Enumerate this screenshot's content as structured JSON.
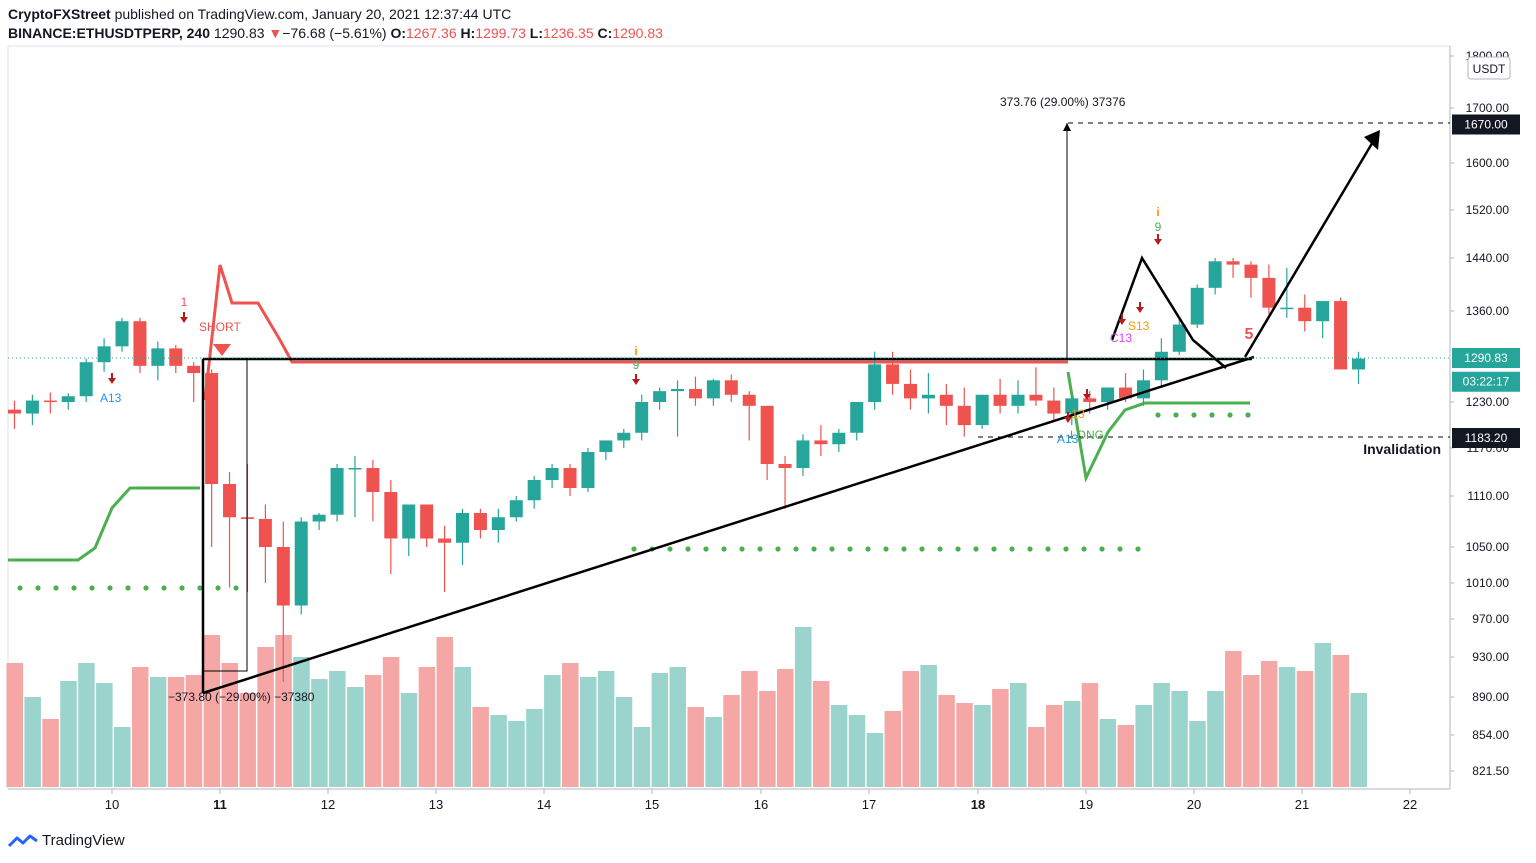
{
  "header": {
    "publisher": "CryptoFXStreet",
    "published_text": "published on TradingView.com, January 20, 2021 12:37:44 UTC",
    "symbol": "BINANCE:ETHUSDTPERP, 240",
    "last": "1290.83",
    "change_arrow": "▼",
    "change": "−76.68 (−5.61%)",
    "o_label": "O:",
    "o": "1267.36",
    "h_label": "H:",
    "h": "1299.73",
    "l_label": "L:",
    "l": "1236.35",
    "c_label": "C:",
    "c": "1290.83"
  },
  "brand": {
    "name": "TradingView",
    "icon": "tradingview-logo-icon"
  },
  "colors": {
    "up": "#26a69a",
    "down": "#ef5350",
    "up_vol": "#9bd3cd",
    "down_vol": "#f5a7a5",
    "supertrend_up": "#4caf50",
    "supertrend_down": "#ef5350",
    "drawing": "#000000"
  },
  "chart_data": {
    "type": "candlestick",
    "currency_label": "USDT",
    "y_ticks": [
      "1800.00",
      "1700.00",
      "1600.00",
      "1520.00",
      "1440.00",
      "1360.00",
      "1230.00",
      "1170.00",
      "1110.00",
      "1050.00",
      "1010.00",
      "970.00",
      "930.00",
      "890.00",
      "854.00",
      "821.50"
    ],
    "x_ticks": [
      "10",
      "11",
      "12",
      "13",
      "14",
      "15",
      "16",
      "17",
      "18",
      "19",
      "20",
      "21",
      "22"
    ],
    "ylim": [
      790,
      1800
    ],
    "price_labels": [
      {
        "value": "1670.00",
        "price": 1670,
        "style": "dark"
      },
      {
        "value": "1290.83",
        "price": 1290.83,
        "style": "teal"
      },
      {
        "value": "03:22:17",
        "price": 1258,
        "style": "teal"
      },
      {
        "value": "1183.20",
        "price": 1183.2,
        "style": "dark"
      }
    ],
    "annotations": {
      "invalidation": "Invalidation",
      "measure_up": "373.76 (29.00%) 37376",
      "measure_down": "−373.80 (−29.00%) −37380",
      "short": "SHORT",
      "long": "LONG",
      "td": [
        {
          "text": "A13",
          "color": "#2196f3"
        },
        {
          "text": "1",
          "color": "#ef5350"
        },
        {
          "text": "9",
          "color": "#4caf50"
        },
        {
          "text": "9",
          "color": "#4caf50"
        },
        {
          "text": "S13",
          "color": "#ff9800"
        },
        {
          "text": "C13",
          "color": "#e040fb"
        },
        {
          "text": "A13",
          "color": "#2196f3"
        },
        {
          "text": "13",
          "color": "#ff9800"
        },
        {
          "text": "5",
          "color": "#ef5350"
        }
      ]
    },
    "candles": [
      [
        1220,
        1232,
        1195,
        1215
      ],
      [
        1215,
        1240,
        1200,
        1232
      ],
      [
        1232,
        1243,
        1215,
        1230
      ],
      [
        1230,
        1242,
        1220,
        1238
      ],
      [
        1238,
        1290,
        1230,
        1285
      ],
      [
        1285,
        1320,
        1272,
        1308
      ],
      [
        1308,
        1350,
        1300,
        1345
      ],
      [
        1345,
        1350,
        1270,
        1280
      ],
      [
        1280,
        1315,
        1260,
        1305
      ],
      [
        1305,
        1310,
        1270,
        1280
      ],
      [
        1280,
        1285,
        1230,
        1270
      ],
      [
        1270,
        1275,
        1050,
        1125
      ],
      [
        1125,
        1140,
        1005,
        1085
      ],
      [
        1085,
        1150,
        1000,
        1083
      ],
      [
        1083,
        1100,
        1010,
        1050
      ],
      [
        1050,
        1080,
        905,
        985
      ],
      [
        985,
        1085,
        975,
        1080
      ],
      [
        1080,
        1090,
        1070,
        1088
      ],
      [
        1088,
        1150,
        1080,
        1145
      ],
      [
        1145,
        1160,
        1085,
        1145
      ],
      [
        1145,
        1155,
        1080,
        1115
      ],
      [
        1115,
        1130,
        1020,
        1060
      ],
      [
        1060,
        1100,
        1040,
        1100
      ],
      [
        1100,
        1100,
        1050,
        1060
      ],
      [
        1060,
        1075,
        1000,
        1055
      ],
      [
        1055,
        1095,
        1030,
        1090
      ],
      [
        1090,
        1095,
        1060,
        1070
      ],
      [
        1070,
        1095,
        1055,
        1085
      ],
      [
        1085,
        1110,
        1080,
        1105
      ],
      [
        1105,
        1135,
        1095,
        1130
      ],
      [
        1130,
        1150,
        1120,
        1145
      ],
      [
        1145,
        1150,
        1110,
        1120
      ],
      [
        1120,
        1170,
        1115,
        1165
      ],
      [
        1165,
        1180,
        1155,
        1180
      ],
      [
        1180,
        1195,
        1170,
        1190
      ],
      [
        1190,
        1240,
        1180,
        1230
      ],
      [
        1230,
        1250,
        1220,
        1245
      ],
      [
        1245,
        1260,
        1185,
        1248
      ],
      [
        1248,
        1265,
        1225,
        1235
      ],
      [
        1235,
        1262,
        1225,
        1260
      ],
      [
        1260,
        1268,
        1230,
        1240
      ],
      [
        1240,
        1245,
        1180,
        1225
      ],
      [
        1225,
        1225,
        1130,
        1150
      ],
      [
        1150,
        1160,
        1095,
        1145
      ],
      [
        1145,
        1188,
        1135,
        1180
      ],
      [
        1180,
        1200,
        1160,
        1175
      ],
      [
        1175,
        1195,
        1165,
        1190
      ],
      [
        1190,
        1230,
        1180,
        1230
      ],
      [
        1230,
        1300,
        1220,
        1282
      ],
      [
        1282,
        1300,
        1240,
        1255
      ],
      [
        1255,
        1275,
        1220,
        1235
      ],
      [
        1235,
        1270,
        1215,
        1240
      ],
      [
        1240,
        1255,
        1200,
        1225
      ],
      [
        1225,
        1250,
        1185,
        1200
      ],
      [
        1200,
        1240,
        1195,
        1240
      ],
      [
        1240,
        1262,
        1215,
        1225
      ],
      [
        1225,
        1260,
        1215,
        1240
      ],
      [
        1240,
        1278,
        1225,
        1232
      ],
      [
        1232,
        1250,
        1205,
        1215
      ],
      [
        1215,
        1240,
        1200,
        1235
      ],
      [
        1235,
        1245,
        1215,
        1230
      ],
      [
        1230,
        1250,
        1220,
        1250
      ],
      [
        1250,
        1270,
        1230,
        1235
      ],
      [
        1235,
        1275,
        1225,
        1260
      ],
      [
        1260,
        1320,
        1250,
        1300
      ],
      [
        1300,
        1348,
        1295,
        1340
      ],
      [
        1340,
        1400,
        1335,
        1395
      ],
      [
        1395,
        1440,
        1385,
        1435
      ],
      [
        1435,
        1440,
        1410,
        1430
      ],
      [
        1430,
        1435,
        1380,
        1410
      ],
      [
        1410,
        1430,
        1355,
        1365
      ],
      [
        1365,
        1425,
        1350,
        1365
      ],
      [
        1365,
        1385,
        1330,
        1345
      ],
      [
        1345,
        1375,
        1320,
        1375
      ],
      [
        1375,
        1380,
        1275,
        1275
      ],
      [
        1275,
        1300,
        1255,
        1290
      ]
    ],
    "volume": [
      0.62,
      0.45,
      0.34,
      0.53,
      0.62,
      0.52,
      0.3,
      0.6,
      0.55,
      0.55,
      0.56,
      0.76,
      0.62,
      0.47,
      0.7,
      0.76,
      0.65,
      0.54,
      0.58,
      0.5,
      0.56,
      0.65,
      0.47,
      0.6,
      0.75,
      0.6,
      0.4,
      0.36,
      0.33,
      0.39,
      0.56,
      0.62,
      0.55,
      0.58,
      0.45,
      0.3,
      0.57,
      0.6,
      0.4,
      0.35,
      0.46,
      0.58,
      0.48,
      0.59,
      0.8,
      0.53,
      0.41,
      0.36,
      0.27,
      0.38,
      0.58,
      0.61,
      0.46,
      0.42,
      0.41,
      0.49,
      0.52,
      0.3,
      0.41,
      0.43,
      0.52,
      0.34,
      0.31,
      0.41,
      0.52,
      0.48,
      0.33,
      0.48,
      0.68,
      0.56,
      0.63,
      0.6,
      0.58,
      0.72,
      0.66,
      0.47
    ]
  }
}
